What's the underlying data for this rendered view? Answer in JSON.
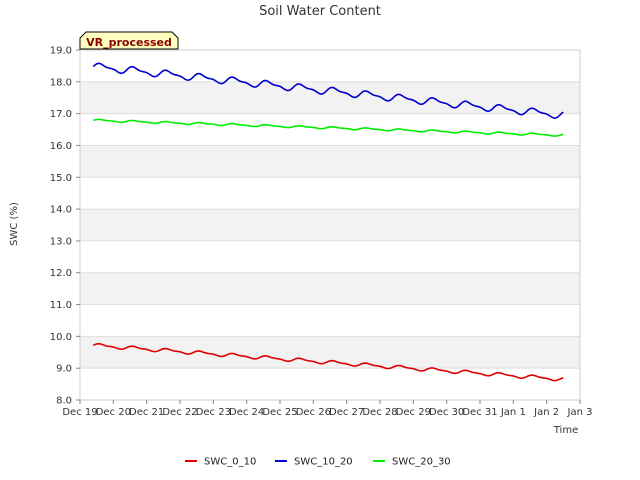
{
  "chart_data": {
    "type": "line",
    "title": "Soil Water Content",
    "xlabel": "Time",
    "ylabel": "SWC (%)",
    "badge": "VR_processed",
    "ylim": [
      8.0,
      19.0
    ],
    "y_ticks": [
      "8.0",
      "9.0",
      "10.0",
      "11.0",
      "12.0",
      "13.0",
      "14.0",
      "15.0",
      "16.0",
      "17.0",
      "18.0",
      "19.0"
    ],
    "x_ticks": [
      "Dec 19",
      "Dec 20",
      "Dec 21",
      "Dec 22",
      "Dec 23",
      "Dec 24",
      "Dec 25",
      "Dec 26",
      "Dec 27",
      "Dec 28",
      "Dec 29",
      "Dec 30",
      "Dec 31",
      "Jan 1",
      "Jan 2",
      "Jan 3"
    ],
    "x_range_days": [
      0,
      15
    ],
    "x_data_span_days": [
      0.4,
      14.5
    ],
    "colors": {
      "SWC_0_10": "#dd0000",
      "SWC_10_20": "#0000cc",
      "SWC_20_30": "#00ee00"
    },
    "series": [
      {
        "name": "SWC_0_10",
        "start": 9.72,
        "end": 8.65,
        "amplitude": 0.07
      },
      {
        "name": "SWC_10_20",
        "start": 18.48,
        "end": 16.95,
        "amplitude": 0.14
      },
      {
        "name": "SWC_20_30",
        "start": 16.79,
        "end": 16.32,
        "amplitude": 0.04
      }
    ]
  }
}
